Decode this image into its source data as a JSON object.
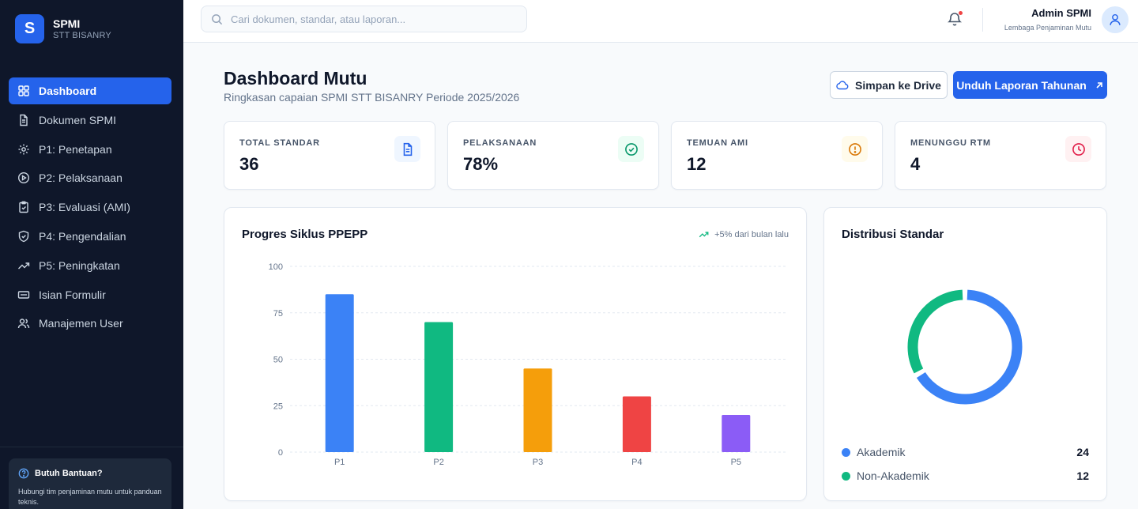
{
  "brand": {
    "logo_letter": "S",
    "title": "SPMI",
    "subtitle": "STT BISANRY"
  },
  "nav": [
    {
      "label": "Dashboard",
      "icon": "dashboard-icon",
      "active": true
    },
    {
      "label": "Dokumen SPMI",
      "icon": "file-icon",
      "active": false
    },
    {
      "label": "P1: Penetapan",
      "icon": "gear-icon",
      "active": false
    },
    {
      "label": "P2: Pelaksanaan",
      "icon": "play-icon",
      "active": false
    },
    {
      "label": "P3: Evaluasi (AMI)",
      "icon": "clipboard-icon",
      "active": false
    },
    {
      "label": "P4: Pengendalian",
      "icon": "shield-icon",
      "active": false
    },
    {
      "label": "P5: Peningkatan",
      "icon": "trend-up-icon",
      "active": false
    },
    {
      "label": "Isian Formulir",
      "icon": "form-icon",
      "active": false
    },
    {
      "label": "Manajemen User",
      "icon": "users-icon",
      "active": false
    }
  ],
  "help": {
    "title": "Butuh Bantuan?",
    "text": "Hubungi tim penjaminan mutu untuk panduan teknis."
  },
  "search": {
    "placeholder": "Cari dokumen, standar, atau laporan..."
  },
  "user": {
    "name": "Admin SPMI",
    "role": "Lembaga Penjaminan Mutu"
  },
  "header": {
    "title": "Dashboard Mutu",
    "subtitle": "Ringkasan capaian SPMI STT BISANRY Periode 2025/2026",
    "drive_button": "Simpan ke Drive",
    "report_button": "Unduh Laporan Tahunan"
  },
  "stats": [
    {
      "label": "TOTAL STANDAR",
      "value": "36",
      "icon": "document-icon",
      "color": "#2563eb",
      "bg": "#eff6ff"
    },
    {
      "label": "PELAKSANAAN",
      "value": "78%",
      "icon": "check-circle-icon",
      "color": "#059669",
      "bg": "#ecfdf5"
    },
    {
      "label": "TEMUAN AMI",
      "value": "12",
      "icon": "alert-circle-icon",
      "color": "#d97706",
      "bg": "#fffbeb"
    },
    {
      "label": "MENUNGGU RTM",
      "value": "4",
      "icon": "clock-icon",
      "color": "#e11d48",
      "bg": "#fff1f2"
    }
  ],
  "progress_panel": {
    "title": "Progres Siklus PPEPP",
    "trend": "+5% dari bulan lalu"
  },
  "distribution_panel": {
    "title": "Distribusi Standar"
  },
  "chart_data": [
    {
      "type": "bar",
      "title": "Progres Siklus PPEPP",
      "categories": [
        "P1",
        "P2",
        "P3",
        "P4",
        "P5"
      ],
      "values": [
        85,
        70,
        45,
        30,
        20
      ],
      "colors": [
        "#3b82f6",
        "#10b981",
        "#f59e0b",
        "#ef4444",
        "#8b5cf6"
      ],
      "ylim": [
        0,
        100
      ],
      "yticks": [
        0,
        25,
        50,
        75,
        100
      ],
      "grid": true,
      "xlabel": "",
      "ylabel": ""
    },
    {
      "type": "pie",
      "style": "donut",
      "title": "Distribusi Standar",
      "labels": [
        "Akademik",
        "Non-Akademik"
      ],
      "values": [
        24,
        12
      ],
      "colors": [
        "#3b82f6",
        "#10b981"
      ],
      "legend": "bottom"
    }
  ]
}
